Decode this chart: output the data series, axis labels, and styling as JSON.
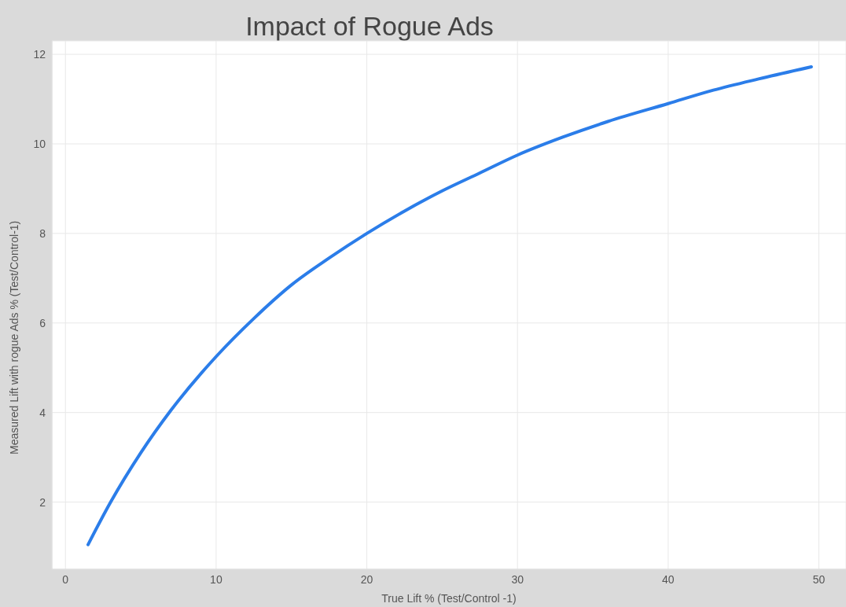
{
  "chart_data": {
    "type": "line",
    "title": "Impact of Rogue Ads",
    "xlabel": "True Lift % (Test/Control -1)",
    "ylabel": "Measured Lift with rogue Ads % (Test/Control-1)",
    "x": [
      1.5,
      3,
      5,
      7,
      10,
      12.5,
      15,
      17.5,
      20,
      22.5,
      25,
      27.5,
      30,
      33,
      36,
      40,
      43,
      46,
      49.5
    ],
    "series": [
      {
        "color": "#2b7de9",
        "values": [
          1.05,
          2.0,
          3.1,
          4.05,
          5.25,
          6.1,
          6.85,
          7.45,
          8.0,
          8.5,
          8.95,
          9.35,
          9.75,
          10.15,
          10.5,
          10.9,
          11.2,
          11.45,
          11.72
        ]
      }
    ],
    "xlim": [
      -0.9,
      51.8
    ],
    "xticks": [
      0,
      10,
      20,
      30,
      40,
      50
    ],
    "ylim": [
      0.5,
      12.3
    ],
    "yticks": [
      2,
      4,
      6,
      8,
      10,
      12
    ],
    "grid": true,
    "marker": "none",
    "line_style": "solid"
  }
}
